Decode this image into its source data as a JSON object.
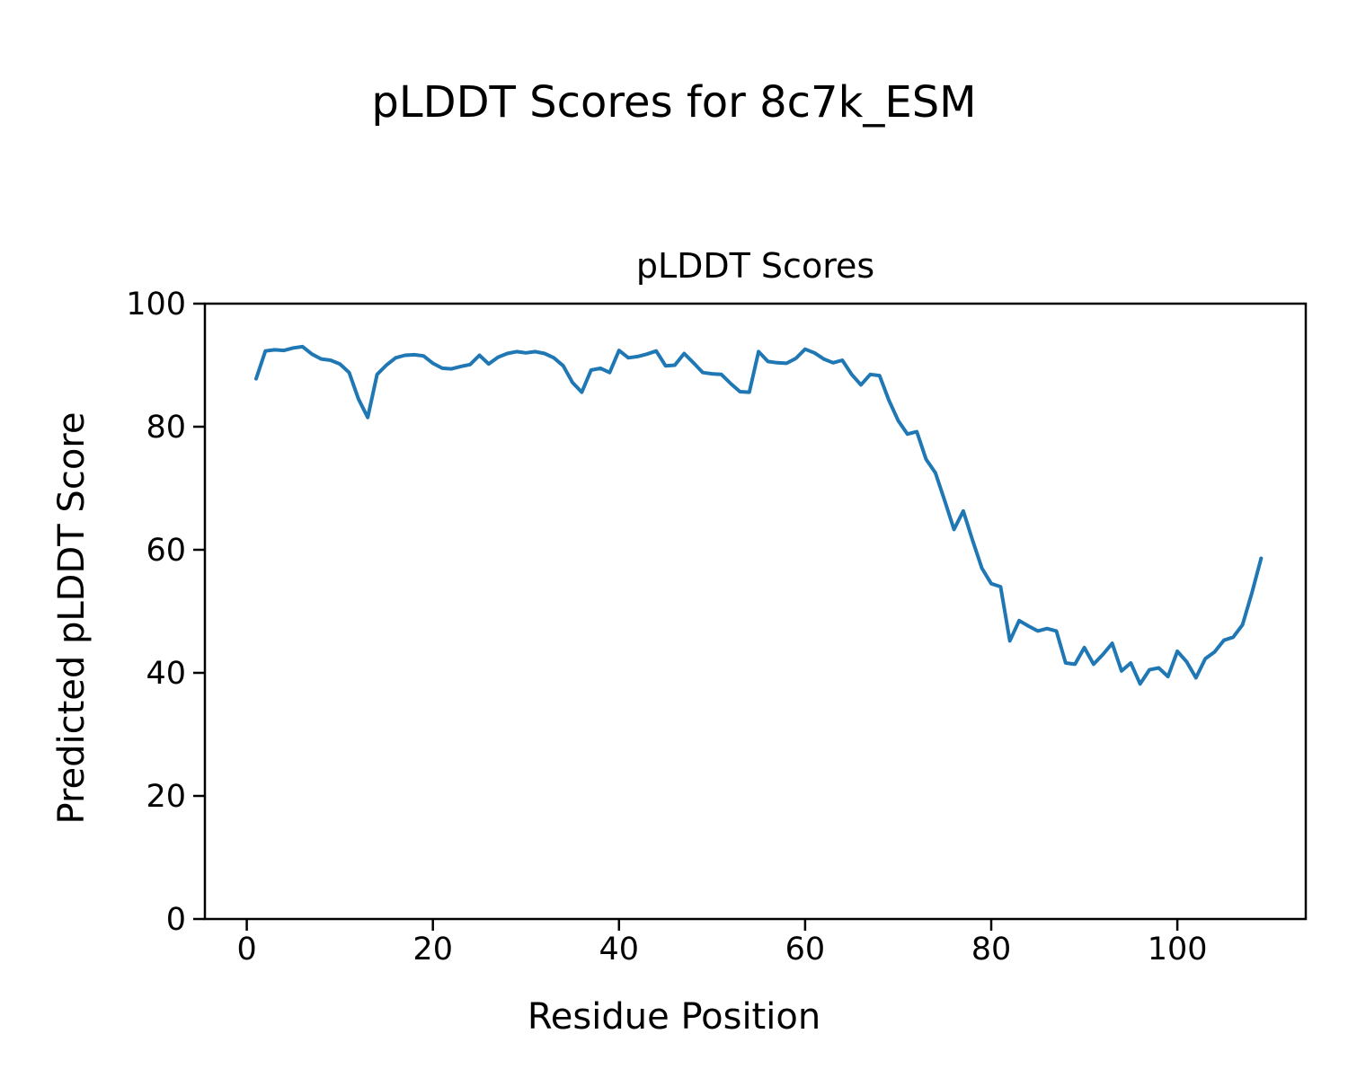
{
  "figure": {
    "suptitle": "pLDDT Scores for 8c7k_ESM",
    "background": "#ffffff",
    "text_color": "#000000"
  },
  "chart_data": {
    "type": "line",
    "title": "pLDDT Scores",
    "xlabel": "Residue Position",
    "ylabel": "Predicted pLDDT Score",
    "xlim": [
      -4.5,
      113.8
    ],
    "ylim": [
      0,
      100
    ],
    "xticks": [
      0,
      20,
      40,
      60,
      80,
      100
    ],
    "yticks": [
      0,
      20,
      40,
      60,
      80,
      100
    ],
    "grid": false,
    "legend": null,
    "line_color": "#1f77b4",
    "line_width": 4,
    "series": [
      {
        "name": "pLDDT",
        "x": [
          1,
          2,
          3,
          4,
          5,
          6,
          7,
          8,
          9,
          10,
          11,
          12,
          13,
          14,
          15,
          16,
          17,
          18,
          19,
          20,
          21,
          22,
          23,
          24,
          25,
          26,
          27,
          28,
          29,
          30,
          31,
          32,
          33,
          34,
          35,
          36,
          37,
          38,
          39,
          40,
          41,
          42,
          43,
          44,
          45,
          46,
          47,
          48,
          49,
          50,
          51,
          52,
          53,
          54,
          55,
          56,
          57,
          58,
          59,
          60,
          61,
          62,
          63,
          64,
          65,
          66,
          67,
          68,
          69,
          70,
          71,
          72,
          73,
          74,
          75,
          76,
          77,
          78,
          79,
          80,
          81,
          82,
          83,
          84,
          85,
          86,
          87,
          88,
          89,
          90,
          91,
          92,
          93,
          94,
          95,
          96,
          97,
          98,
          99,
          100,
          101,
          102,
          103,
          104,
          105,
          106,
          107,
          108,
          109
        ],
        "y": [
          87.8,
          92.3,
          92.5,
          92.4,
          92.8,
          93.0,
          91.8,
          91.0,
          90.8,
          90.2,
          88.8,
          84.5,
          81.5,
          88.5,
          90.0,
          91.2,
          91.6,
          91.7,
          91.5,
          90.3,
          89.5,
          89.4,
          89.8,
          90.1,
          91.6,
          90.2,
          91.3,
          91.9,
          92.2,
          92.0,
          92.2,
          91.9,
          91.2,
          89.9,
          87.2,
          85.6,
          89.2,
          89.5,
          88.8,
          92.4,
          91.2,
          91.4,
          91.8,
          92.3,
          89.9,
          90.0,
          91.9,
          90.4,
          88.8,
          88.6,
          88.5,
          87.0,
          85.7,
          85.6,
          92.2,
          90.6,
          90.4,
          90.3,
          91.1,
          92.6,
          92.0,
          91.0,
          90.4,
          90.8,
          88.5,
          86.8,
          88.5,
          88.3,
          84.3,
          81.0,
          78.8,
          79.2,
          74.7,
          72.5,
          68.0,
          63.3,
          66.3,
          61.5,
          57.0,
          54.5,
          54.0,
          45.2,
          48.5,
          47.6,
          46.8,
          47.2,
          46.8,
          41.6,
          41.4,
          44.1,
          41.4,
          43.0,
          44.8,
          40.3,
          41.6,
          38.2,
          40.5,
          40.8,
          39.4,
          43.5,
          41.8,
          39.2,
          42.3,
          43.4,
          45.3,
          45.8,
          47.8,
          52.9,
          58.6
        ]
      }
    ]
  }
}
